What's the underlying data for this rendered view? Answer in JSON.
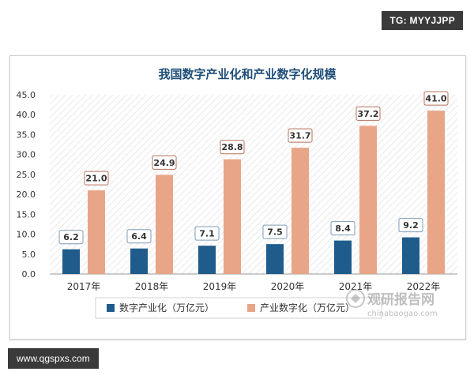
{
  "badges": {
    "top_right": "TG: MYYJJPP",
    "bottom_left": "www.qgspxs.com"
  },
  "watermark": {
    "brand": "观研报告网",
    "url": "chinabaogao.com"
  },
  "chart_data": {
    "type": "bar",
    "title": "我国数字产业化和产业数字化规模",
    "categories": [
      "2017年",
      "2018年",
      "2019年",
      "2020年",
      "2021年",
      "2022年"
    ],
    "series": [
      {
        "name": "数字产业化（万亿元）",
        "values": [
          6.2,
          6.4,
          7.1,
          7.5,
          8.4,
          9.2
        ],
        "color": "#1f5c8b"
      },
      {
        "name": "产业数字化（万亿元）",
        "values": [
          21.0,
          24.9,
          28.8,
          31.7,
          37.2,
          41.0
        ],
        "color": "#e8a587"
      }
    ],
    "ylim": [
      0,
      45
    ],
    "yticks": [
      "0.0",
      "5.0",
      "10.0",
      "15.0",
      "20.0",
      "25.0",
      "30.0",
      "35.0",
      "40.0",
      "45.0"
    ],
    "data_labels": [
      [
        "6.2",
        "6.4",
        "7.1",
        "7.5",
        "8.4",
        "9.2"
      ],
      [
        "21.0",
        "24.9",
        "28.8",
        "31.7",
        "37.2",
        "41.0"
      ]
    ],
    "grid": false,
    "legend_position": "bottom"
  }
}
